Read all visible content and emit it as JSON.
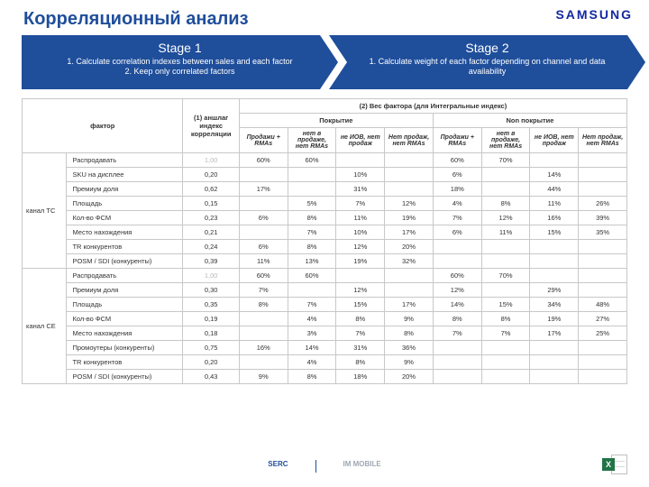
{
  "title": "Корреляционный анализ",
  "brand": "SAMSUNG",
  "stages": [
    {
      "name": "Stage 1",
      "body": "1. Calculate correlation indexes between sales and each factor\n2. Keep only correlated factors"
    },
    {
      "name": "Stage 2",
      "body": "1. Calculate weight of each factor depending on channel and data availability"
    }
  ],
  "colors": {
    "title": "#1f4e9b",
    "stage_bg": "#1f4e9b",
    "stage_text": "#ffffff",
    "border": "#c8c8c8",
    "gray_text": "#b8b8b8",
    "excel_green": "#217346"
  },
  "table": {
    "headers": {
      "factor": "фактор",
      "corr": "(1) аншлаг индекс корреляции",
      "weight_top": "(2) Вес фактора (для Интегральные индекс)",
      "coverage": "Покрытие",
      "noncoverage": "Non покрытие",
      "sub": [
        "Продажи + RMAs",
        "нет в продаже, нет RMAs",
        "не ИОВ, нет продаж",
        "Нет продаж, нет RMAs",
        "Продажи + RMAs",
        "нет в продаже, нет RMAs",
        "не ИОВ, нет продаж",
        "Нет продаж, нет RMAs"
      ]
    },
    "groups": [
      {
        "label": "канал TC",
        "rows": [
          {
            "f": "Распродавать",
            "c": "1,00",
            "gray": true,
            "v": [
              "60%",
              "60%",
              "",
              "",
              "60%",
              "70%",
              "",
              ""
            ]
          },
          {
            "f": "SKU на дисплее",
            "c": "0,20",
            "v": [
              "",
              "",
              "10%",
              "",
              "6%",
              "",
              "14%",
              ""
            ]
          },
          {
            "f": "Премиум доля",
            "c": "0,62",
            "v": [
              "17%",
              "",
              "31%",
              "",
              "18%",
              "",
              "44%",
              ""
            ]
          },
          {
            "f": "Площадь",
            "c": "0,15",
            "v": [
              "",
              "5%",
              "7%",
              "12%",
              "4%",
              "8%",
              "11%",
              "26%"
            ]
          },
          {
            "f": "Кол-во ФСМ",
            "c": "0,23",
            "v": [
              "6%",
              "8%",
              "11%",
              "19%",
              "7%",
              "12%",
              "16%",
              "39%"
            ]
          },
          {
            "f": "Место нахождения",
            "c": "0,21",
            "v": [
              "",
              "7%",
              "10%",
              "17%",
              "6%",
              "11%",
              "15%",
              "35%"
            ]
          },
          {
            "f": "TR конкурентов",
            "c": "0,24",
            "v": [
              "6%",
              "8%",
              "12%",
              "20%",
              "",
              "",
              "",
              ""
            ]
          },
          {
            "f": "POSM / SDI (конкуренты)",
            "c": "0,39",
            "v": [
              "11%",
              "13%",
              "19%",
              "32%",
              "",
              "",
              "",
              ""
            ]
          }
        ]
      },
      {
        "label": "канал CE",
        "rows": [
          {
            "f": "Распродавать",
            "c": "1,00",
            "gray": true,
            "v": [
              "60%",
              "60%",
              "",
              "",
              "60%",
              "70%",
              "",
              ""
            ]
          },
          {
            "f": "Премиум доля",
            "c": "0,30",
            "v": [
              "7%",
              "",
              "12%",
              "",
              "12%",
              "",
              "29%",
              ""
            ]
          },
          {
            "f": "Площадь",
            "c": "0,35",
            "v": [
              "8%",
              "7%",
              "15%",
              "17%",
              "14%",
              "15%",
              "34%",
              "48%"
            ]
          },
          {
            "f": "Кол-во ФСМ",
            "c": "0,19",
            "v": [
              "",
              "4%",
              "8%",
              "9%",
              "8%",
              "8%",
              "19%",
              "27%"
            ]
          },
          {
            "f": "Место нахождения",
            "c": "0,18",
            "v": [
              "",
              "3%",
              "7%",
              "8%",
              "7%",
              "7%",
              "17%",
              "25%"
            ]
          },
          {
            "f": "Промоутеры (конкуренты)",
            "c": "0,75",
            "v": [
              "16%",
              "14%",
              "31%",
              "36%",
              "",
              "",
              "",
              ""
            ]
          },
          {
            "f": "TR конкурентов",
            "c": "0,20",
            "v": [
              "",
              "4%",
              "8%",
              "9%",
              "",
              "",
              "",
              ""
            ]
          },
          {
            "f": "POSM / SDI (конкуренты)",
            "c": "0,43",
            "v": [
              "9%",
              "8%",
              "18%",
              "20%",
              "",
              "",
              "",
              ""
            ]
          }
        ]
      }
    ]
  },
  "footer": {
    "left": "SERC",
    "right": "IM MOBILE"
  },
  "excel_badge": "X"
}
